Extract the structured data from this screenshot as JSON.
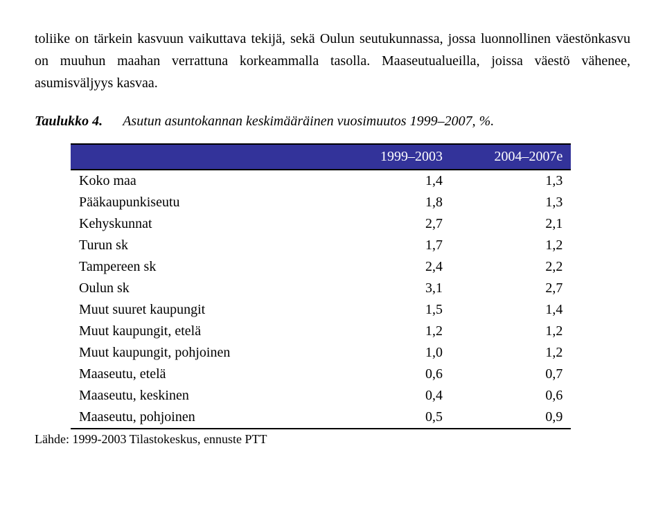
{
  "paragraph": "toliike on tärkein kasvuun vaikuttava tekijä, sekä Oulun seutukunnassa, jossa luonnollinen väestönkasvu on muuhun maahan verrattuna korkeammalla tasolla. Maaseutualueilla, joissa väestö vähenee, asumisväljyys kasvaa.",
  "caption": {
    "label": "Taulukko 4.",
    "text": "Asutun asuntokannan keskimääräinen vuosimuutos 1999–2007, %."
  },
  "table": {
    "columns": [
      "",
      "1999–2003",
      "2004–2007e"
    ],
    "rows": [
      [
        "Koko maa",
        "1,4",
        "1,3"
      ],
      [
        "Pääkaupunkiseutu",
        "1,8",
        "1,3"
      ],
      [
        "Kehyskunnat",
        "2,7",
        "2,1"
      ],
      [
        "Turun sk",
        "1,7",
        "1,2"
      ],
      [
        "Tampereen sk",
        "2,4",
        "2,2"
      ],
      [
        "Oulun sk",
        "3,1",
        "2,7"
      ],
      [
        "Muut suuret kaupungit",
        "1,5",
        "1,4"
      ],
      [
        "Muut kaupungit, etelä",
        "1,2",
        "1,2"
      ],
      [
        "Muut kaupungit, pohjoinen",
        "1,0",
        "1,2"
      ],
      [
        "Maaseutu, etelä",
        "0,6",
        "0,7"
      ],
      [
        "Maaseutu, keskinen",
        "0,4",
        "0,6"
      ],
      [
        "Maaseutu, pohjoinen",
        "0,5",
        "0,9"
      ]
    ],
    "header_bg": "#33339a",
    "header_fg": "#ffffff",
    "border_color": "#000000",
    "col_widths": [
      "52%",
      "24%",
      "24%"
    ]
  },
  "source": "Lähde: 1999-2003 Tilastokeskus, ennuste PTT"
}
